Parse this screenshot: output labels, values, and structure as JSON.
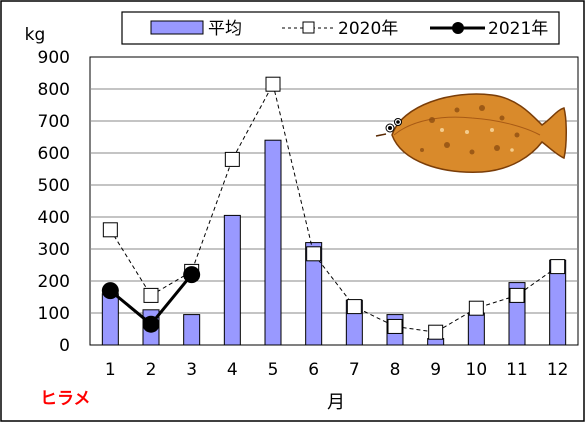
{
  "chart_data": {
    "type": "bar",
    "ylabel": "kg",
    "xlabel": "月",
    "species_label": "ヒラメ",
    "categories": [
      "1",
      "2",
      "3",
      "4",
      "5",
      "6",
      "7",
      "8",
      "9",
      "10",
      "11",
      "12"
    ],
    "ylim": [
      0,
      900
    ],
    "yticks": [
      0,
      100,
      200,
      300,
      400,
      500,
      600,
      700,
      800,
      900
    ],
    "grid": true,
    "legend_position": "top",
    "series": [
      {
        "name": "平均",
        "type": "bar",
        "color": "#9999ff",
        "values": [
          160,
          110,
          95,
          405,
          640,
          320,
          140,
          95,
          20,
          100,
          195,
          265
        ]
      },
      {
        "name": "2020年",
        "type": "line",
        "style": "dashed-open-square",
        "values": [
          360,
          155,
          230,
          580,
          815,
          285,
          120,
          58,
          40,
          115,
          155,
          245
        ]
      },
      {
        "name": "2021年",
        "type": "line",
        "style": "solid-filled-circle",
        "values": [
          170,
          65,
          220,
          null,
          null,
          null,
          null,
          null,
          null,
          null,
          null,
          null
        ]
      }
    ],
    "image": "flounder-illustration"
  }
}
